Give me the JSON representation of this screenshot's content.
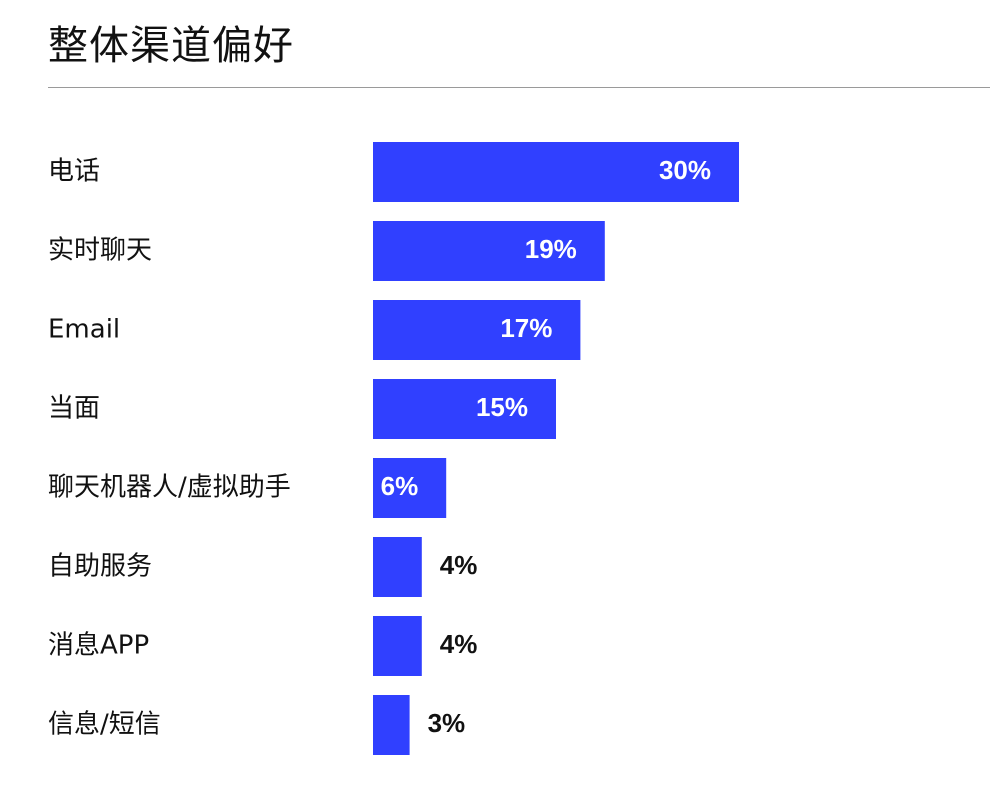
{
  "chart_data": {
    "type": "bar",
    "orientation": "horizontal",
    "title": "整体渠道偏好",
    "categories": [
      "电话",
      "实时聊天",
      "Email",
      "当面",
      "聊天机器人/虚拟助手",
      "自助服务",
      "消息APP",
      "信息/短信"
    ],
    "values": [
      30,
      19,
      17,
      15,
      6,
      4,
      4,
      3
    ],
    "value_labels": [
      "30%",
      "19%",
      "17%",
      "15%",
      "6%",
      "4%",
      "4%",
      "3%"
    ],
    "unit": "%",
    "xlim": [
      0,
      30
    ],
    "grid": false,
    "legend": "none",
    "bar_color": "#3040ff"
  }
}
